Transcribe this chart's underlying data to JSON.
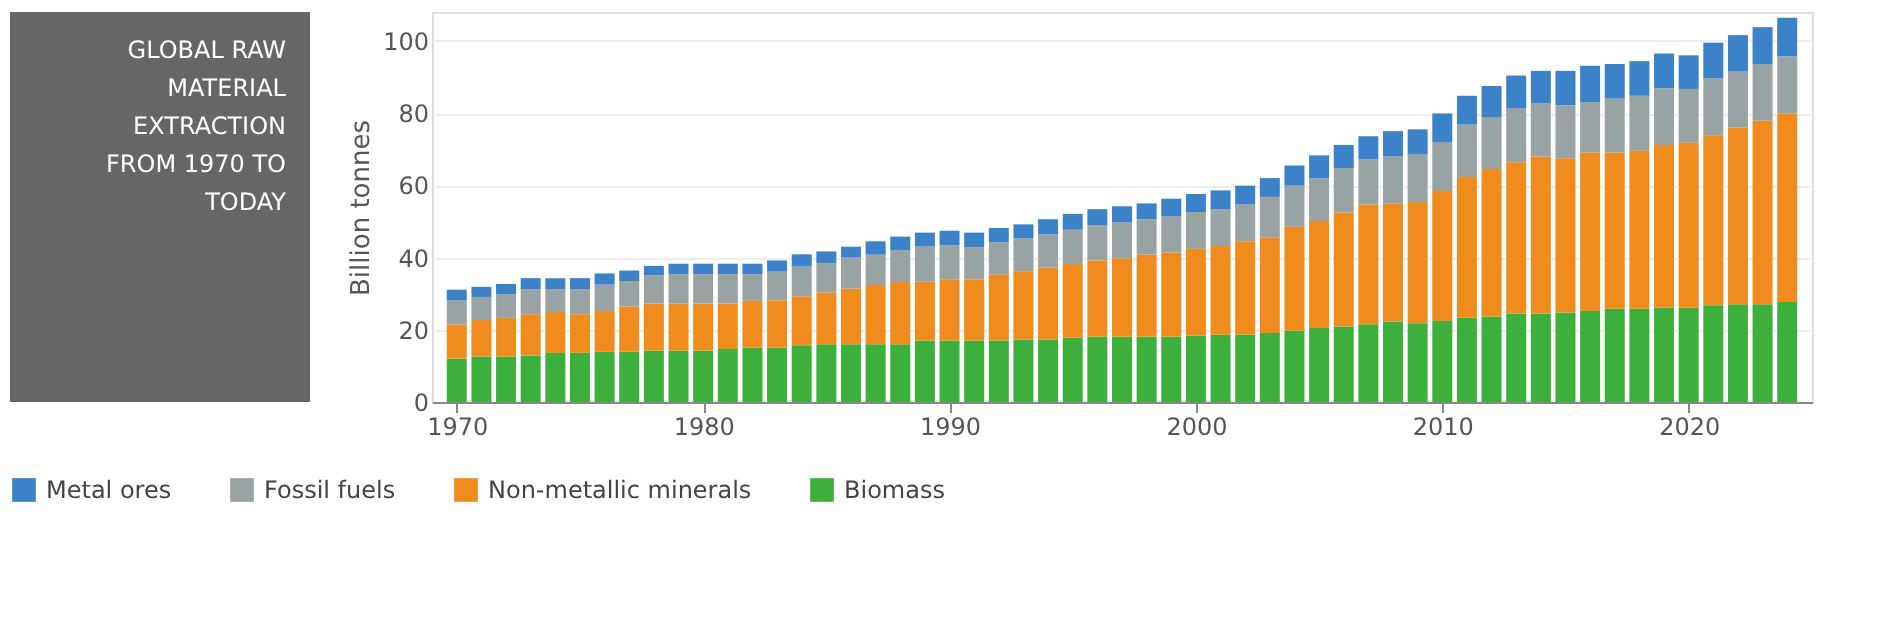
{
  "chart_data": {
    "type": "bar",
    "title": "GLOBAL RAW MATERIAL EXTRACTION FROM 1970 TO TODAY",
    "ylabel": "Billion tonnes",
    "stacked": true,
    "legend": "bottom",
    "grid": "y",
    "x": [
      1970,
      1971,
      1972,
      1973,
      1974,
      1975,
      1976,
      1977,
      1978,
      1979,
      1980,
      1981,
      1982,
      1983,
      1984,
      1985,
      1986,
      1987,
      1988,
      1989,
      1990,
      1991,
      1992,
      1993,
      1994,
      1995,
      1996,
      1997,
      1998,
      1999,
      2000,
      2001,
      2002,
      2003,
      2004,
      2005,
      2006,
      2007,
      2008,
      2009,
      2010,
      2011,
      2012,
      2013,
      2014,
      2015,
      2016,
      2017,
      2018,
      2019,
      2020,
      2021,
      2022,
      2023,
      2024
    ],
    "xlim": [
      1969.4,
      2024.6
    ],
    "xticks": [
      1970,
      1980,
      1990,
      2000,
      2010,
      2020
    ],
    "ylim": [
      0,
      108
    ],
    "yticks": [
      0,
      20,
      40,
      60,
      80,
      100
    ],
    "series": [
      {
        "name": "Biomass",
        "color": "#3daf3d",
        "values": [
          12,
          12.6,
          12.6,
          12.9,
          13.6,
          13.6,
          13.9,
          13.9,
          14.2,
          14.2,
          14.2,
          14.7,
          15,
          15,
          15.7,
          16,
          16,
          16,
          16,
          17,
          17,
          17,
          17,
          17.3,
          17.3,
          17.8,
          18.1,
          18.1,
          18.1,
          18.1,
          18.4,
          18.6,
          18.6,
          19.1,
          19.7,
          20.5,
          20.9,
          21.5,
          22.3,
          21.8,
          22.4,
          23.3,
          23.7,
          24.5,
          24.5,
          24.8,
          25.2,
          25.8,
          25.8,
          26.1,
          26.1,
          26.8,
          27.1,
          27.1,
          27.7
        ]
      },
      {
        "name": "Non-metallic minerals",
        "color": "#f08c1e",
        "values": [
          9.5,
          10.1,
          10.7,
          11.4,
          11.3,
          10.7,
          11.3,
          12.5,
          13.1,
          13.1,
          13.1,
          12.6,
          13,
          13.2,
          13.6,
          14.3,
          15.4,
          16.4,
          17.2,
          16.3,
          17,
          17,
          18.3,
          18.9,
          19.9,
          20.4,
          21.1,
          21.7,
          22.7,
          23.3,
          24,
          24.6,
          25.9,
          26.5,
          28.8,
          29.6,
          31.6,
          33.2,
          32.6,
          33.6,
          36,
          39,
          40.8,
          41.9,
          43.5,
          42.7,
          43.8,
          43.3,
          43.8,
          45.1,
          45.7,
          47.1,
          48.9,
          50.8,
          52.2
        ]
      },
      {
        "name": "Fossil fuels",
        "color": "#9aa3a3",
        "values": [
          6.7,
          6.4,
          6.5,
          6.9,
          6.3,
          6.9,
          7.3,
          7.1,
          7.8,
          8.1,
          8.1,
          8.1,
          7.4,
          7.9,
          8.2,
          8.2,
          8.6,
          8.4,
          8.9,
          9.9,
          9.4,
          8.9,
          8.9,
          9.1,
          9.2,
          9.5,
          9.8,
          10,
          9.8,
          10.1,
          10.2,
          10.2,
          10.2,
          11.2,
          11.4,
          11.8,
          12.3,
          12.5,
          13.1,
          13.1,
          13.6,
          14.5,
          14.4,
          15,
          14.7,
          14.7,
          14,
          14.9,
          15.2,
          15.7,
          14.9,
          15.7,
          15.5,
          15.7,
          15.8
        ]
      },
      {
        "name": "Metal ores",
        "color": "#3b82c8",
        "values": [
          2.9,
          2.8,
          2.9,
          3.1,
          3.1,
          3.1,
          3.1,
          2.9,
          2.6,
          2.9,
          2.9,
          2.9,
          2.9,
          3.1,
          3.4,
          3.2,
          3,
          3.7,
          3.7,
          3.7,
          4,
          4,
          4,
          3.9,
          4.2,
          4.4,
          4.4,
          4.4,
          4.4,
          4.8,
          5,
          5.2,
          5.2,
          5.2,
          5.6,
          6.4,
          6.4,
          6.4,
          7,
          7,
          7.9,
          8,
          8.6,
          9,
          9,
          9.5,
          10.1,
          9.6,
          9.6,
          9.6,
          9.3,
          9.9,
          10.1,
          10.2,
          10.7
        ]
      }
    ]
  }
}
